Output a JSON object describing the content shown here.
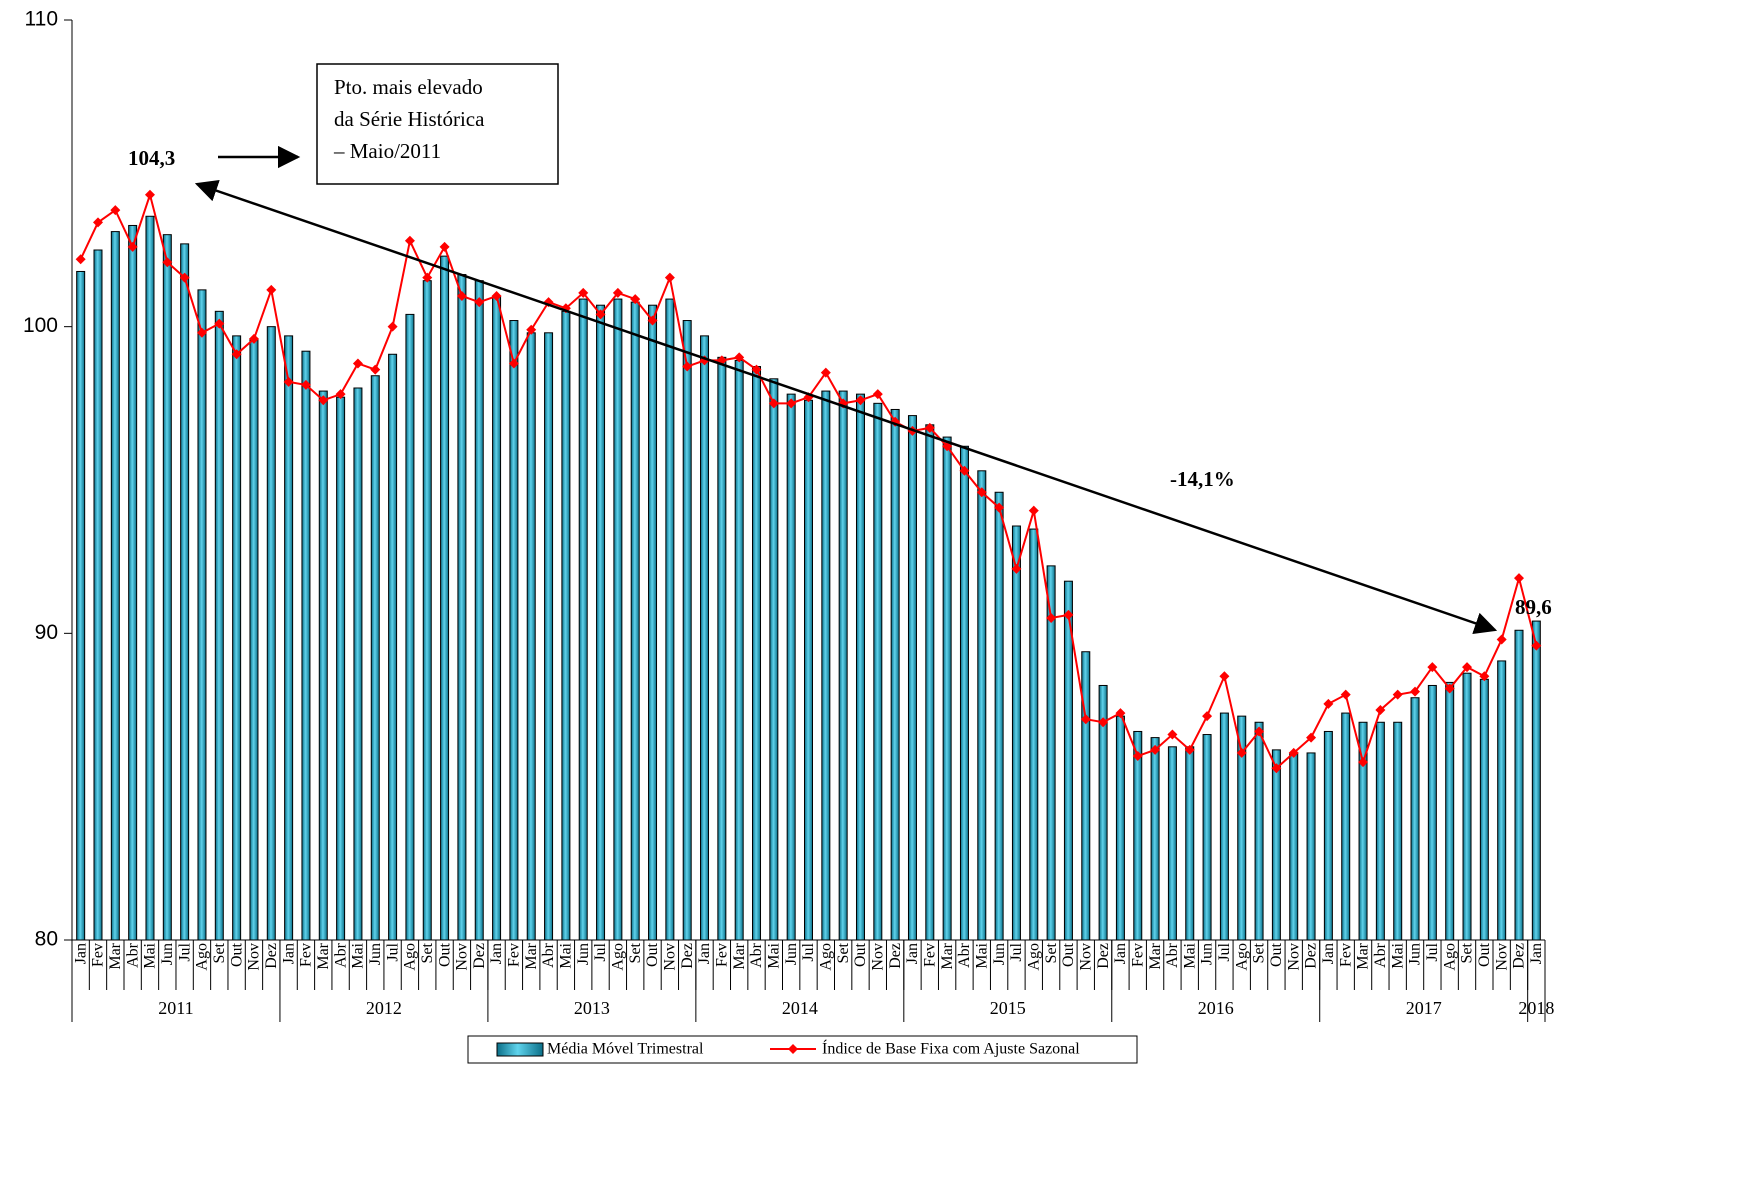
{
  "chart_data": {
    "type": "bar-line",
    "categories": [
      "Jan",
      "Fev",
      "Mar",
      "Abr",
      "Mai",
      "Jun",
      "Jul",
      "Ago",
      "Set",
      "Out",
      "Nov",
      "Dez",
      "Jan",
      "Fev",
      "Mar",
      "Abr",
      "Mai",
      "Jun",
      "Jul",
      "Ago",
      "Set",
      "Out",
      "Nov",
      "Dez",
      "Jan",
      "Fev",
      "Mar",
      "Abr",
      "Mai",
      "Jun",
      "Jul",
      "Ago",
      "Set",
      "Out",
      "Nov",
      "Dez",
      "Jan",
      "Fev",
      "Mar",
      "Abr",
      "Mai",
      "Jun",
      "Jul",
      "Ago",
      "Set",
      "Out",
      "Nov",
      "Dez",
      "Jan",
      "Fev",
      "Mar",
      "Abr",
      "Mai",
      "Jun",
      "Jul",
      "Ago",
      "Set",
      "Out",
      "Nov",
      "Dez",
      "Jan",
      "Fev",
      "Mar",
      "Abr",
      "Mai",
      "Jun",
      "Jul",
      "Ago",
      "Set",
      "Out",
      "Nov",
      "Dez",
      "Jan",
      "Fev",
      "Mar",
      "Abr",
      "Mai",
      "Jun",
      "Jul",
      "Ago",
      "Set",
      "Out",
      "Nov",
      "Dez",
      "Jan"
    ],
    "years": [
      "2011",
      "2012",
      "2013",
      "2014",
      "2015",
      "2016",
      "2017",
      "2018"
    ],
    "series": [
      {
        "name": "Média Móvel Trimestral",
        "type": "bar",
        "color": "#1fa9c9",
        "values": [
          101.8,
          102.5,
          103.1,
          103.3,
          103.6,
          103.0,
          102.7,
          101.2,
          100.5,
          99.7,
          99.6,
          100.0,
          99.7,
          99.2,
          97.9,
          97.7,
          98.0,
          98.4,
          99.1,
          100.4,
          101.5,
          102.3,
          101.7,
          101.5,
          101.0,
          100.2,
          99.8,
          99.8,
          100.5,
          100.9,
          100.7,
          100.9,
          100.8,
          100.7,
          100.9,
          100.2,
          99.7,
          99.0,
          98.9,
          98.7,
          98.3,
          97.8,
          97.6,
          97.9,
          97.9,
          97.8,
          97.5,
          97.3,
          97.1,
          96.8,
          96.4,
          96.1,
          95.3,
          94.6,
          93.5,
          93.4,
          92.2,
          91.7,
          89.4,
          88.3,
          87.3,
          86.8,
          86.6,
          86.3,
          86.3,
          86.7,
          87.4,
          87.3,
          87.1,
          86.2,
          86.1,
          86.1,
          86.8,
          87.4,
          87.1,
          87.1,
          87.1,
          87.9,
          88.3,
          88.4,
          88.7,
          88.5,
          89.1,
          90.1,
          90.4
        ]
      },
      {
        "name": "Índice de Base Fixa com Ajuste Sazonal",
        "type": "line",
        "color": "#ff0000",
        "values": [
          102.2,
          103.4,
          103.8,
          102.6,
          104.3,
          102.1,
          101.6,
          99.8,
          100.1,
          99.1,
          99.6,
          101.2,
          98.2,
          98.1,
          97.6,
          97.8,
          98.8,
          98.6,
          100.0,
          102.8,
          101.6,
          102.6,
          101.0,
          100.8,
          101.0,
          98.8,
          99.9,
          100.8,
          100.6,
          101.1,
          100.4,
          101.1,
          100.9,
          100.2,
          101.6,
          98.7,
          98.9,
          98.9,
          99.0,
          98.6,
          97.5,
          97.5,
          97.7,
          98.5,
          97.5,
          97.6,
          97.8,
          96.9,
          96.6,
          96.7,
          96.1,
          95.3,
          94.6,
          94.1,
          92.1,
          94.0,
          90.5,
          90.6,
          87.2,
          87.1,
          87.4,
          86.0,
          86.2,
          86.7,
          86.2,
          87.3,
          88.6,
          86.1,
          86.8,
          85.6,
          86.1,
          86.6,
          87.7,
          88.0,
          85.8,
          87.5,
          88.0,
          88.1,
          88.9,
          88.2,
          88.9,
          88.6,
          89.8,
          91.8,
          89.6
        ]
      }
    ],
    "ylim": [
      80,
      110
    ],
    "yticks": [
      80,
      90,
      100,
      110
    ],
    "grid": false,
    "annotations": [
      "104,3",
      "-14,1%",
      "89,6"
    ],
    "note_box": [
      "Pto. mais elevado",
      "da Série Histórica",
      "– Maio/2011"
    ]
  }
}
